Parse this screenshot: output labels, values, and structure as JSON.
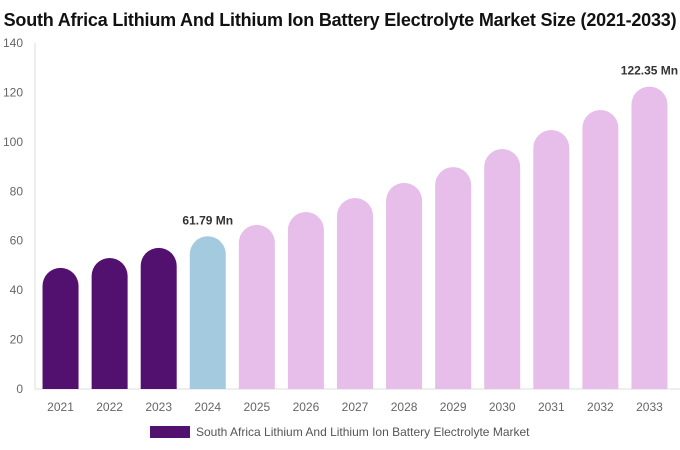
{
  "chart_data": {
    "type": "bar",
    "title": "South Africa Lithium And Lithium Ion Battery Electrolyte Market Size (2021-2033)",
    "categories": [
      "2021",
      "2022",
      "2023",
      "2024",
      "2025",
      "2026",
      "2027",
      "2028",
      "2029",
      "2030",
      "2031",
      "2032",
      "2033"
    ],
    "series": [
      {
        "name": "South Africa Lithium And Lithium Ion Battery Electrolyte Market",
        "values": [
          49.0,
          53.0,
          57.1,
          61.79,
          66.4,
          71.6,
          77.3,
          83.4,
          89.8,
          97.1,
          104.8,
          112.9,
          122.35
        ]
      }
    ],
    "data_labels": [
      {
        "category": "2024",
        "text": "61.79 Mn"
      },
      {
        "category": "2033",
        "text": "122.35 Mn"
      }
    ],
    "ylim": [
      0,
      140
    ],
    "yticks": [
      0,
      20,
      40,
      60,
      80,
      100,
      120,
      140
    ],
    "xlabel": "",
    "ylabel": "",
    "grid": false,
    "legend_position": "bottom",
    "colors": {
      "historical": "#53116f",
      "base_year": "#a3cadf",
      "forecast": "#e7bde9"
    },
    "color_by_category": [
      "historical",
      "historical",
      "historical",
      "base_year",
      "forecast",
      "forecast",
      "forecast",
      "forecast",
      "forecast",
      "forecast",
      "forecast",
      "forecast",
      "forecast"
    ]
  }
}
